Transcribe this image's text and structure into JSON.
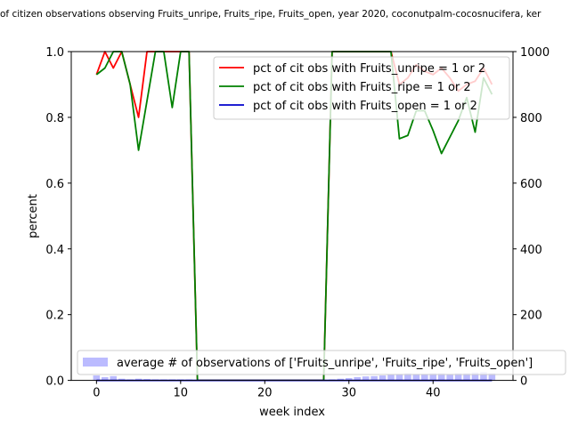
{
  "chart_data": {
    "type": "line",
    "title": "of citizen observations observing Fruits_unripe, Fruits_ripe, Fruits_open, year 2020, coconutpalm-cocosnucifera, ker",
    "xlabel": "week index",
    "ylabel": "percent",
    "xlim": [
      -3,
      49.5
    ],
    "ylim": [
      0,
      1.0
    ],
    "y2lim": [
      0,
      1000
    ],
    "xticks": [
      0,
      10,
      20,
      30,
      40
    ],
    "yticks": [
      0.0,
      0.2,
      0.4,
      0.6,
      0.8,
      1.0
    ],
    "y2ticks": [
      0,
      200,
      400,
      600,
      800,
      1000
    ],
    "grid": false,
    "legend_placement": "upper right",
    "bar_legend_placement": "lower right",
    "series": [
      {
        "name": "pct of cit obs with Fruits_unripe = 1 or 2",
        "color": "#ff0000",
        "x": [
          0,
          1,
          2,
          3,
          4,
          5,
          6,
          7,
          8,
          9,
          10,
          11,
          12,
          13,
          14,
          15,
          16,
          17,
          18,
          19,
          20,
          21,
          22,
          23,
          24,
          25,
          26,
          27,
          28,
          29,
          30,
          31,
          32,
          33,
          34,
          35,
          36,
          37,
          38,
          39,
          40,
          41,
          42,
          43,
          44,
          45,
          46,
          47
        ],
        "values": [
          0.93,
          1.0,
          0.95,
          1.0,
          0.9,
          0.8,
          1.0,
          1.0,
          1.0,
          1.0,
          1.0,
          1.0,
          0.0,
          0.0,
          0.0,
          0.0,
          0.0,
          0.0,
          0.0,
          0.0,
          0.0,
          0.0,
          0.0,
          0.0,
          0.0,
          0.0,
          0.0,
          0.0,
          1.0,
          1.0,
          1.0,
          1.0,
          1.0,
          1.0,
          1.0,
          1.0,
          0.9,
          0.92,
          0.96,
          0.94,
          0.93,
          0.95,
          0.92,
          0.88,
          0.9,
          0.91,
          0.95,
          0.9
        ]
      },
      {
        "name": "pct of cit obs with Fruits_ripe = 1 or 2",
        "color": "#008000",
        "x": [
          0,
          1,
          2,
          3,
          4,
          5,
          6,
          7,
          8,
          9,
          10,
          11,
          12,
          13,
          14,
          15,
          16,
          17,
          18,
          19,
          20,
          21,
          22,
          23,
          24,
          25,
          26,
          27,
          28,
          29,
          30,
          31,
          32,
          33,
          34,
          35,
          36,
          37,
          38,
          39,
          40,
          41,
          42,
          43,
          44,
          45,
          46,
          47
        ],
        "values": [
          0.93,
          0.95,
          1.0,
          1.0,
          0.9,
          0.7,
          0.85,
          1.0,
          1.0,
          0.83,
          1.0,
          1.0,
          0.0,
          0.0,
          0.0,
          0.0,
          0.0,
          0.0,
          0.0,
          0.0,
          0.0,
          0.0,
          0.0,
          0.0,
          0.0,
          0.0,
          0.0,
          0.0,
          1.0,
          1.0,
          1.0,
          1.0,
          1.0,
          1.0,
          1.0,
          1.0,
          0.735,
          0.745,
          0.82,
          0.82,
          0.76,
          0.69,
          0.74,
          0.79,
          0.86,
          0.755,
          0.92,
          0.87
        ]
      },
      {
        "name": "pct of cit obs with Fruits_open = 1 or 2",
        "color": "#0000cc",
        "x": [
          0,
          1,
          2,
          3,
          4,
          5,
          6,
          7,
          8,
          9,
          10,
          11,
          12,
          13,
          14,
          15,
          16,
          17,
          18,
          19,
          20,
          21,
          22,
          23,
          24,
          25,
          26,
          27,
          28,
          29,
          30,
          31,
          32,
          33,
          34,
          35,
          36,
          37,
          38,
          39,
          40,
          41,
          42,
          43,
          44,
          45,
          46,
          47
        ],
        "values": [
          0.0,
          0.0,
          0.0,
          0.0,
          0.0,
          0.0,
          0.0,
          0.0,
          0.0,
          0.0,
          0.0,
          0.0,
          0.0,
          0.0,
          0.0,
          0.0,
          0.0,
          0.0,
          0.0,
          0.0,
          0.0,
          0.0,
          0.0,
          0.0,
          0.0,
          0.0,
          0.0,
          0.0,
          0.0,
          0.0,
          0.0,
          0.0,
          0.0,
          0.0,
          0.0,
          0.0,
          0.0,
          0.0,
          0.0,
          0.0,
          0.0,
          0.0,
          0.0,
          0.0,
          0.0,
          0.0,
          0.0,
          0.0
        ]
      }
    ],
    "bar_series": {
      "name": "average # of observations of ['Fruits_unripe', 'Fruits_ripe', 'Fruits_open']",
      "color": "#bbbbff",
      "axis": "right",
      "x": [
        0,
        1,
        2,
        3,
        4,
        5,
        6,
        7,
        8,
        9,
        10,
        11,
        12,
        13,
        14,
        15,
        16,
        17,
        18,
        19,
        20,
        21,
        22,
        23,
        24,
        25,
        26,
        27,
        28,
        29,
        30,
        31,
        32,
        33,
        34,
        35,
        36,
        37,
        38,
        39,
        40,
        41,
        42,
        43,
        44,
        45,
        46,
        47
      ],
      "values": [
        15,
        10,
        13,
        5,
        3,
        5,
        4,
        3,
        3,
        3,
        3,
        3,
        0,
        0,
        0,
        0,
        0,
        0,
        0,
        0,
        0,
        0,
        0,
        0,
        0,
        0,
        0,
        0,
        3,
        5,
        7,
        10,
        12,
        13,
        15,
        18,
        20,
        22,
        20,
        20,
        22,
        22,
        20,
        22,
        22,
        24,
        25,
        22
      ]
    }
  }
}
